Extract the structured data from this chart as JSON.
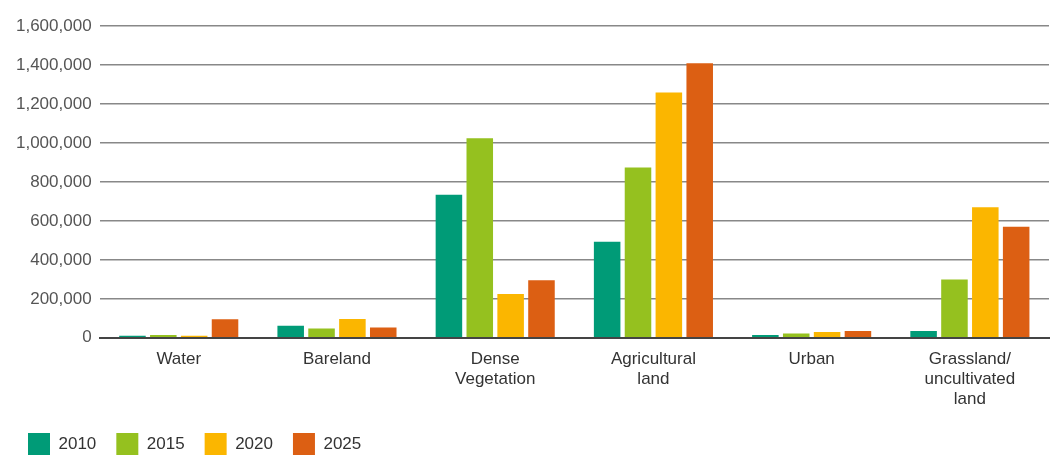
{
  "chart_data": {
    "type": "bar",
    "categories": [
      "Water",
      "Bareland",
      "Dense Vegetation",
      "Agricultural land",
      "Urban",
      "Grassland/ uncultivated land"
    ],
    "series": [
      {
        "name": "2010",
        "color": "#009b77",
        "values": [
          10000,
          62000,
          735000,
          493000,
          15000,
          35000
        ]
      },
      {
        "name": "2015",
        "color": "#95c11f",
        "values": [
          15000,
          48000,
          1025000,
          875000,
          22000,
          300000
        ]
      },
      {
        "name": "2020",
        "color": "#fbb600",
        "values": [
          10000,
          97000,
          225000,
          1260000,
          30000,
          670000
        ]
      },
      {
        "name": "2025",
        "color": "#dc5f13",
        "values": [
          95000,
          53000,
          295000,
          1410000,
          35000,
          570000
        ]
      }
    ],
    "ylim": [
      0,
      1600000
    ],
    "yticks": [
      0,
      {
        "value": 200000,
        "label": "200,000"
      },
      {
        "value": 400000,
        "label": "400,000"
      },
      {
        "value": 600000,
        "label": "600,000"
      },
      {
        "value": 800000,
        "label": "800,000"
      },
      {
        "value": 1000000,
        "label": "1,000,000"
      },
      {
        "value": 1200000,
        "label": "1,200,000"
      },
      {
        "value": 1400000,
        "label": "1,400,000"
      },
      {
        "value": 1600000,
        "label": "1,600,000"
      }
    ],
    "grid": "y",
    "legend": "bottom left"
  }
}
